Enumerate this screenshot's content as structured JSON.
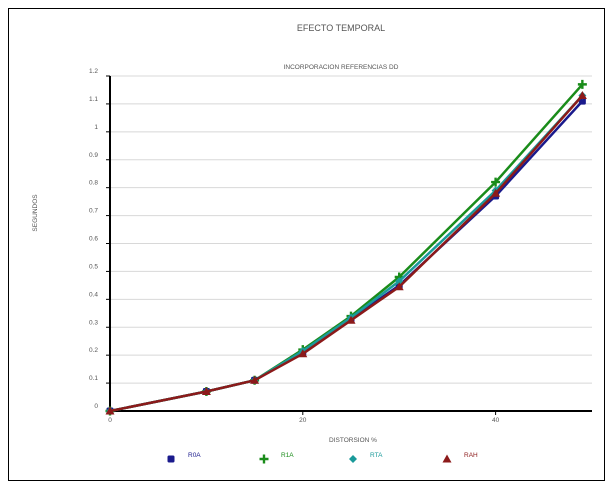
{
  "chart_data": {
    "type": "line",
    "title": "EFECTO TEMPORAL",
    "subtitle": "INCORPORACION REFERENCIAS DD",
    "xlabel": "DISTORSION %",
    "ylabel": "SEGUNDOS",
    "xlim": [
      0,
      50
    ],
    "ylim": [
      0,
      1.2
    ],
    "xticks": [
      0,
      20,
      40
    ],
    "yticks": [
      0,
      0.1,
      0.2,
      0.3,
      0.4,
      0.5,
      0.6,
      0.7,
      0.8,
      0.9,
      1,
      1.1,
      1.2
    ],
    "ytick_labels": [
      "0",
      "0.1",
      "0.2",
      "0.3",
      "0.4",
      "0.5",
      "0.6",
      "0.7",
      "0.8",
      "0.9",
      "1",
      "1.1",
      "1.2"
    ],
    "xtick_labels": [
      "0",
      "20",
      "40"
    ],
    "grid": "horizontal",
    "legend": "bottom",
    "series": [
      {
        "name": "R0A",
        "color": "#1a1a8c",
        "marker": "square",
        "x": [
          0,
          10,
          15,
          20,
          25,
          30,
          40,
          49
        ],
        "y": [
          0,
          0.07,
          0.11,
          0.21,
          0.33,
          0.45,
          0.77,
          1.11
        ]
      },
      {
        "name": "R1A",
        "color": "#1a8c1a",
        "marker": "plus",
        "x": [
          0,
          10,
          15,
          20,
          25,
          30,
          40,
          49
        ],
        "y": [
          0,
          0.07,
          0.11,
          0.22,
          0.34,
          0.48,
          0.82,
          1.17
        ]
      },
      {
        "name": "RTA",
        "color": "#1a9a9a",
        "marker": "diamond",
        "x": [
          0,
          10,
          15,
          20,
          25,
          30,
          40,
          49
        ],
        "y": [
          0,
          0.07,
          0.11,
          0.215,
          0.335,
          0.465,
          0.79,
          1.13
        ]
      },
      {
        "name": "RAH",
        "color": "#8c1a1a",
        "marker": "triangle",
        "x": [
          0,
          10,
          15,
          20,
          25,
          30,
          40,
          49
        ],
        "y": [
          0,
          0.07,
          0.11,
          0.205,
          0.325,
          0.445,
          0.78,
          1.13
        ]
      }
    ]
  }
}
